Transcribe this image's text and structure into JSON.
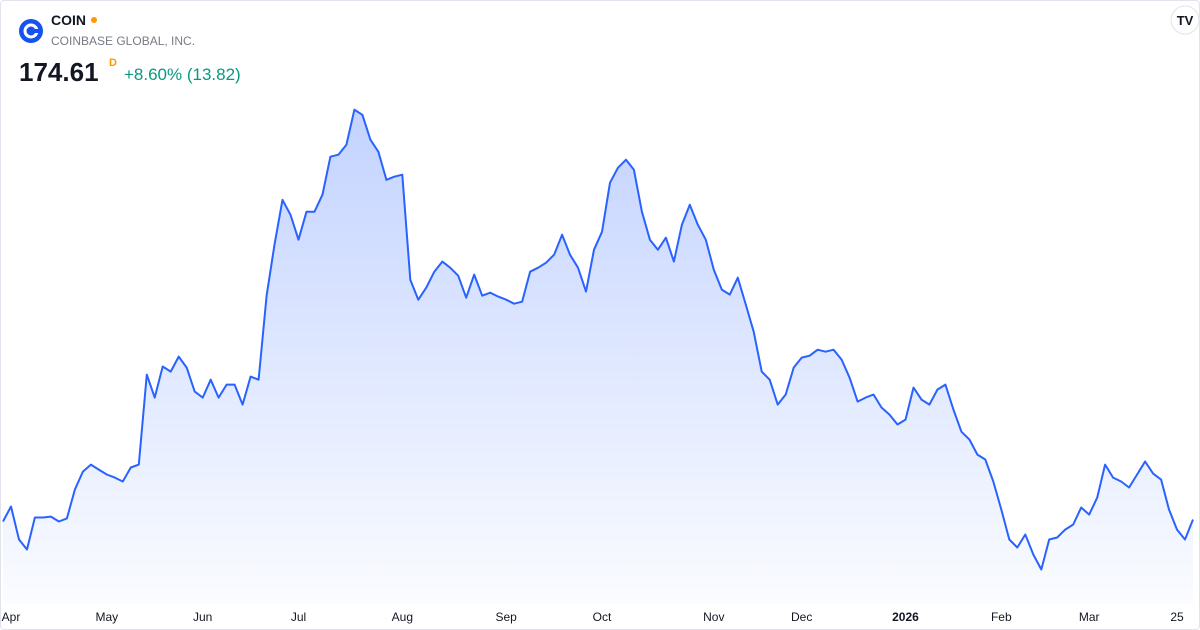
{
  "header": {
    "symbol": "COIN",
    "name": "COINBASE GLOBAL, INC.",
    "price": 174.61,
    "interval": "D",
    "change": "+8.60% (13.82)"
  },
  "chart_data": {
    "type": "area",
    "color": "#2962ff",
    "categories": [
      null,
      "Apr",
      null,
      null,
      null,
      null,
      null,
      null,
      null,
      null,
      null,
      null,
      null,
      "May",
      null,
      null,
      null,
      null,
      null,
      null,
      null,
      null,
      null,
      null,
      null,
      "Jun",
      null,
      null,
      null,
      null,
      null,
      null,
      null,
      null,
      null,
      null,
      null,
      "Jul",
      null,
      null,
      null,
      null,
      null,
      null,
      null,
      null,
      null,
      null,
      null,
      null,
      "Aug",
      null,
      null,
      null,
      null,
      null,
      null,
      null,
      null,
      null,
      null,
      null,
      null,
      "Sep",
      null,
      null,
      null,
      null,
      null,
      null,
      null,
      null,
      null,
      null,
      null,
      "Oct",
      null,
      null,
      null,
      null,
      null,
      null,
      null,
      null,
      null,
      null,
      null,
      null,
      null,
      "Nov",
      null,
      null,
      null,
      null,
      null,
      null,
      null,
      null,
      null,
      null,
      "Dec",
      null,
      null,
      null,
      null,
      null,
      null,
      null,
      null,
      null,
      null,
      null,
      null,
      "2026",
      null,
      null,
      null,
      null,
      null,
      null,
      null,
      null,
      null,
      null,
      null,
      "Feb",
      null,
      null,
      null,
      null,
      null,
      null,
      null,
      null,
      null,
      null,
      "Mar",
      null,
      null,
      null,
      null,
      null,
      null,
      null,
      null,
      null,
      null,
      "25",
      null,
      null
    ],
    "values": [
      173.3,
      183.0,
      161.7,
      155.2,
      175.9,
      175.9,
      176.5,
      173.3,
      175.3,
      194.0,
      205.6,
      210.1,
      206.9,
      203.7,
      201.7,
      199.2,
      208.2,
      210.1,
      268.3,
      253.4,
      273.5,
      270.2,
      279.9,
      272.8,
      257.3,
      253.4,
      265.0,
      253.4,
      261.8,
      261.8,
      248.9,
      267.0,
      265.0,
      319.3,
      352.3,
      381.3,
      371.6,
      355.5,
      373.6,
      373.6,
      384.6,
      409.1,
      410.4,
      416.9,
      439.5,
      436.2,
      420.1,
      412.3,
      394.2,
      396.2,
      397.5,
      329.6,
      316.7,
      324.5,
      334.8,
      341.3,
      337.4,
      332.2,
      318.0,
      332.9,
      319.3,
      321.2,
      318.7,
      316.7,
      314.1,
      315.4,
      334.8,
      337.4,
      340.6,
      345.8,
      358.7,
      345.8,
      337.4,
      321.9,
      349.0,
      360.6,
      392.3,
      402.0,
      407.2,
      400.7,
      373.6,
      355.5,
      349.0,
      356.8,
      341.3,
      365.2,
      378.1,
      365.2,
      355.5,
      336.1,
      323.2,
      320.0,
      330.9,
      313.5,
      296.0,
      270.2,
      265.0,
      248.9,
      255.4,
      272.8,
      279.3,
      280.5,
      284.4,
      283.1,
      284.4,
      278.0,
      266.3,
      250.8,
      253.4,
      255.4,
      247.0,
      242.4,
      236.0,
      239.2,
      259.9,
      252.1,
      248.9,
      258.6,
      261.8,
      245.7,
      231.4,
      226.3,
      216.6,
      213.4,
      199.2,
      181.1,
      161.7,
      156.5,
      164.9,
      152.0,
      142.3,
      161.7,
      163.0,
      168.1,
      171.4,
      182.4,
      177.8,
      188.8,
      210.1,
      201.7,
      199.2,
      195.3,
      203.7,
      212.1,
      204.3,
      200.4,
      181.1,
      168.1,
      161.7,
      174.61
    ],
    "ylim": [
      120,
      460
    ]
  }
}
